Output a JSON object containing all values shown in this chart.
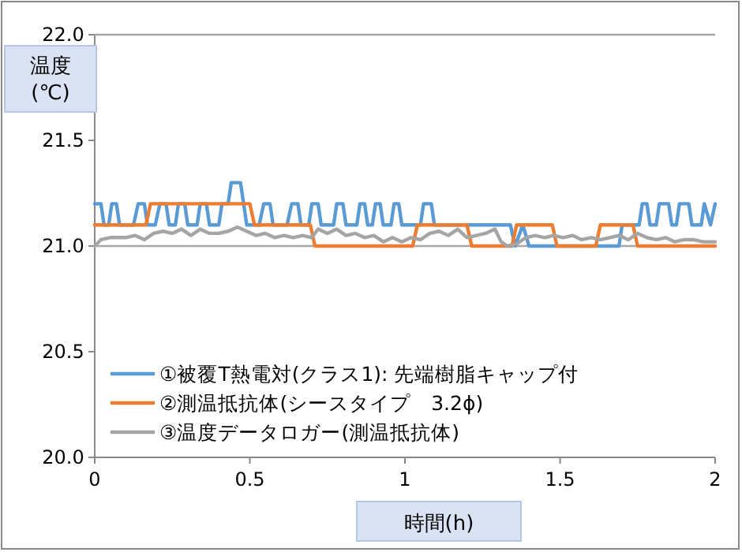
{
  "chart_data": {
    "type": "line",
    "xlabel": "時間(h)",
    "ylabel": "温度\n(℃)",
    "xlim": [
      0,
      2
    ],
    "ylim": [
      20,
      22
    ],
    "xticks": [
      0,
      0.5,
      1,
      1.5,
      2
    ],
    "yticks": [
      {
        "value": 20,
        "label": "20.0"
      },
      {
        "value": 20.5,
        "label": "20.5"
      },
      {
        "value": 21,
        "label": "21.0"
      },
      {
        "value": 21.5,
        "label": "21.5"
      },
      {
        "value": 22,
        "label": "22.0"
      }
    ],
    "ref_lines": [
      {
        "axis": "y",
        "value": 21,
        "color": "#a6a6a6"
      }
    ],
    "legend": "bottom left",
    "marker": "none",
    "line_style": "solid",
    "series": [
      {
        "name": "①被覆T熱電対(クラス1): 先端樹脂キャップ付",
        "color": "#5b9bd5",
        "x": [
          0,
          0.02,
          0.03,
          0.045,
          0.055,
          0.07,
          0.08,
          0.125,
          0.14,
          0.16,
          0.17,
          0.195,
          0.21,
          0.23,
          0.24,
          0.26,
          0.27,
          0.29,
          0.3,
          0.33,
          0.34,
          0.36,
          0.37,
          0.4,
          0.41,
          0.43,
          0.44,
          0.47,
          0.48,
          0.49,
          0.53,
          0.545,
          0.565,
          0.575,
          0.62,
          0.635,
          0.655,
          0.665,
          0.69,
          0.7,
          0.72,
          0.73,
          0.77,
          0.78,
          0.8,
          0.81,
          0.845,
          0.855,
          0.87,
          0.88,
          0.895,
          0.905,
          0.92,
          0.93,
          0.955,
          0.965,
          0.98,
          0.99,
          1.05,
          1.06,
          1.085,
          1.095,
          1.34,
          1.355,
          1.38,
          1.4,
          1.69,
          1.7,
          1.755,
          1.765,
          1.78,
          1.79,
          1.81,
          1.82,
          1.85,
          1.86,
          1.875,
          1.885,
          1.915,
          1.925,
          1.955,
          1.965,
          1.985,
          2.0
        ],
        "values": [
          21.2,
          21.2,
          21.1,
          21.1,
          21.2,
          21.2,
          21.1,
          21.1,
          21.2,
          21.2,
          21.1,
          21.1,
          21.2,
          21.2,
          21.1,
          21.1,
          21.2,
          21.2,
          21.1,
          21.1,
          21.2,
          21.2,
          21.1,
          21.1,
          21.2,
          21.2,
          21.3,
          21.3,
          21.2,
          21.1,
          21.1,
          21.2,
          21.2,
          21.1,
          21.1,
          21.2,
          21.2,
          21.1,
          21.1,
          21.2,
          21.2,
          21.1,
          21.1,
          21.2,
          21.2,
          21.1,
          21.1,
          21.2,
          21.2,
          21.1,
          21.1,
          21.2,
          21.2,
          21.1,
          21.1,
          21.2,
          21.2,
          21.1,
          21.1,
          21.2,
          21.2,
          21.1,
          21.1,
          21.0,
          21.1,
          21.0,
          21.0,
          21.1,
          21.1,
          21.2,
          21.2,
          21.1,
          21.1,
          21.2,
          21.2,
          21.1,
          21.1,
          21.2,
          21.2,
          21.1,
          21.1,
          21.2,
          21.1,
          21.2
        ]
      },
      {
        "name": "②測温抵抗体(シースタイプ　3.2ϕ)",
        "color": "#ed7d31",
        "x": [
          0,
          0.165,
          0.18,
          0.5,
          0.515,
          0.695,
          0.71,
          1.025,
          1.04,
          1.2,
          1.215,
          1.345,
          1.36,
          1.475,
          1.49,
          1.615,
          1.63,
          1.735,
          1.75,
          2.0
        ],
        "values": [
          21.1,
          21.1,
          21.2,
          21.2,
          21.1,
          21.1,
          21.0,
          21.0,
          21.1,
          21.1,
          21.0,
          21.0,
          21.1,
          21.1,
          21.0,
          21.0,
          21.1,
          21.1,
          21.0,
          21.0
        ]
      },
      {
        "name": "③温度データロガー(測温抵抗体)",
        "color": "#a5a5a5",
        "x": [
          0,
          0.02,
          0.05,
          0.1,
          0.13,
          0.16,
          0.19,
          0.22,
          0.25,
          0.28,
          0.31,
          0.34,
          0.37,
          0.4,
          0.43,
          0.46,
          0.49,
          0.52,
          0.55,
          0.58,
          0.61,
          0.64,
          0.67,
          0.7,
          0.72,
          0.75,
          0.78,
          0.81,
          0.84,
          0.87,
          0.9,
          0.93,
          0.96,
          0.99,
          1.02,
          1.05,
          1.08,
          1.11,
          1.14,
          1.17,
          1.2,
          1.23,
          1.26,
          1.29,
          1.31,
          1.33,
          1.36,
          1.39,
          1.42,
          1.45,
          1.48,
          1.51,
          1.54,
          1.57,
          1.6,
          1.63,
          1.66,
          1.69,
          1.72,
          1.75,
          1.78,
          1.81,
          1.84,
          1.87,
          1.9,
          1.93,
          1.96,
          2.0
        ],
        "values": [
          21.0,
          21.03,
          21.04,
          21.04,
          21.05,
          21.03,
          21.06,
          21.07,
          21.06,
          21.08,
          21.05,
          21.08,
          21.06,
          21.06,
          21.07,
          21.09,
          21.07,
          21.05,
          21.06,
          21.04,
          21.05,
          21.04,
          21.05,
          21.04,
          21.08,
          21.06,
          21.08,
          21.05,
          21.06,
          21.04,
          21.05,
          21.02,
          21.04,
          21.02,
          21.04,
          21.03,
          21.06,
          21.07,
          21.05,
          21.08,
          21.04,
          21.05,
          21.06,
          21.08,
          21.02,
          21.0,
          21.01,
          21.04,
          21.05,
          21.04,
          21.05,
          21.04,
          21.05,
          21.03,
          21.04,
          21.03,
          21.04,
          21.05,
          21.03,
          21.06,
          21.04,
          21.03,
          21.04,
          21.02,
          21.03,
          21.03,
          21.02,
          21.02
        ]
      }
    ]
  }
}
